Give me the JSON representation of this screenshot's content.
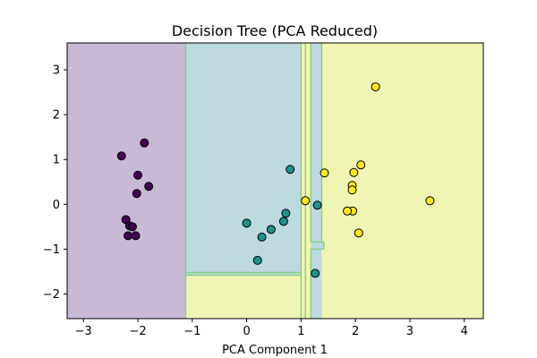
{
  "chart_data": {
    "type": "scatter",
    "title": "Decision Tree (PCA Reduced)",
    "xlabel": "PCA Component 1",
    "ylabel": "",
    "xlim": [
      -3.3,
      4.35
    ],
    "ylim": [
      -2.55,
      3.6
    ],
    "xticks": [
      -3,
      -2,
      -1,
      0,
      1,
      2,
      3,
      4
    ],
    "yticks": [
      -2,
      -1,
      0,
      1,
      2,
      3
    ],
    "xtick_labels": [
      "−3",
      "−2",
      "−1",
      "0",
      "1",
      "2",
      "3",
      "4"
    ],
    "ytick_labels": [
      "−2",
      "−1",
      "0",
      "1",
      "2",
      "3"
    ],
    "grid": false,
    "colors": {
      "class0_region": "#c8b9d4",
      "class1_region": "#bddadf",
      "class2_region": "#f1f5b4",
      "boundary": "#86cf7d",
      "class0_point": "#440154",
      "class1_point": "#21918c",
      "class2_point": "#fde725",
      "point_edge": "#000000"
    },
    "regions": [
      {
        "class": 0,
        "x": [
          -3.3,
          -1.12
        ],
        "y": [
          -2.55,
          3.6
        ]
      },
      {
        "class": 1,
        "x": [
          -1.12,
          1.0
        ],
        "y": [
          -2.55,
          3.6
        ]
      },
      {
        "class": 2,
        "x": [
          1.0,
          1.08
        ],
        "y": [
          -2.55,
          3.6
        ]
      },
      {
        "class": 1,
        "x": [
          1.08,
          1.38
        ],
        "y": [
          -2.55,
          3.6
        ]
      },
      {
        "class": 2,
        "x": [
          1.38,
          4.35
        ],
        "y": [
          -2.55,
          3.6
        ]
      },
      {
        "class": 2,
        "x": [
          -1.12,
          1.0
        ],
        "y": [
          -2.55,
          -1.58
        ]
      },
      {
        "class": 2,
        "x": [
          1.08,
          1.18
        ],
        "y": [
          -2.55,
          3.6
        ]
      },
      {
        "class": 1,
        "x": [
          1.18,
          1.42
        ],
        "y": [
          -1.0,
          -0.84
        ]
      },
      {
        "class": 2,
        "x": [
          1.38,
          1.42
        ],
        "y": [
          -0.84,
          3.6
        ]
      }
    ],
    "series": [
      {
        "class": 0,
        "points": [
          [
            -2.3,
            1.08
          ],
          [
            -1.88,
            1.37
          ],
          [
            -2.0,
            0.65
          ],
          [
            -1.8,
            0.4
          ],
          [
            -2.02,
            0.24
          ],
          [
            -2.22,
            -0.34
          ],
          [
            -2.15,
            -0.48
          ],
          [
            -2.1,
            -0.5
          ],
          [
            -2.18,
            -0.7
          ],
          [
            -2.04,
            -0.7
          ]
        ]
      },
      {
        "class": 1,
        "points": [
          [
            0.8,
            0.78
          ],
          [
            0.72,
            -0.2
          ],
          [
            0.68,
            -0.38
          ],
          [
            0.45,
            -0.56
          ],
          [
            0.28,
            -0.73
          ],
          [
            0.0,
            -0.42
          ],
          [
            0.2,
            -1.25
          ],
          [
            1.3,
            -0.02
          ],
          [
            1.26,
            -1.54
          ]
        ]
      },
      {
        "class": 2,
        "points": [
          [
            2.37,
            2.62
          ],
          [
            2.1,
            0.88
          ],
          [
            1.97,
            0.71
          ],
          [
            1.43,
            0.7
          ],
          [
            1.08,
            0.08
          ],
          [
            1.94,
            0.42
          ],
          [
            1.94,
            0.32
          ],
          [
            3.37,
            0.08
          ],
          [
            1.95,
            -0.15
          ],
          [
            1.85,
            -0.15
          ],
          [
            2.06,
            -0.64
          ]
        ]
      }
    ]
  }
}
